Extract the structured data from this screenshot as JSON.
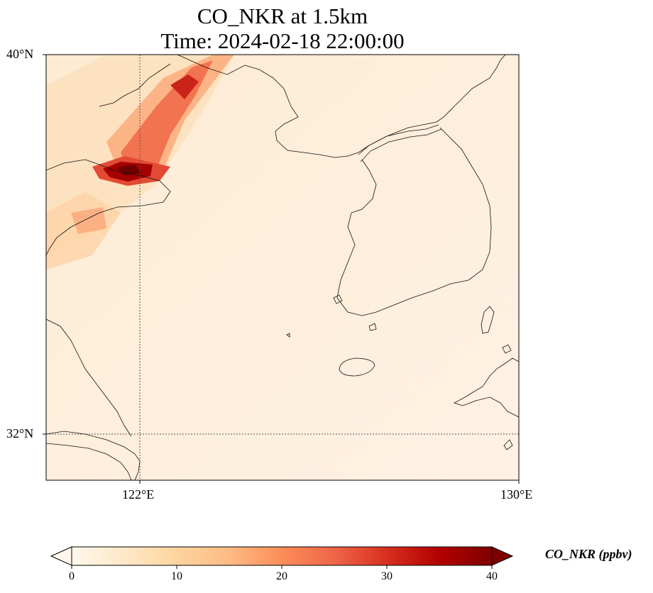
{
  "title": {
    "line1": "CO_NKR at 1.5km",
    "line2": "Time: 2024-02-18 22:00:00"
  },
  "map": {
    "variable": "CO_NKR",
    "height": "1.5km",
    "time": "2024-02-18 22:00:00",
    "extent": {
      "lon_min": 119.6,
      "lon_max": 130,
      "lat_min": 31,
      "lat_max": 40
    },
    "colormap": "OrRd",
    "gridlines": {
      "lon": [
        122
      ],
      "lat": [
        32
      ],
      "style": "dotted"
    },
    "lon_ticks": [
      {
        "value": 122,
        "label": "122°E"
      },
      {
        "value": 130,
        "label": "130°E"
      }
    ],
    "lat_ticks": [
      {
        "value": 40,
        "label": "40°N"
      },
      {
        "value": 32,
        "label": "32°N"
      }
    ],
    "features": [
      "China coastline",
      "Bohai Sea",
      "Yellow Sea",
      "Korean Peninsula",
      "Jeju Island",
      "Tsushima",
      "Kyushu"
    ]
  },
  "colorbar": {
    "label": "CO_NKR (ppbv)",
    "min": 0,
    "max": 40,
    "extend": "both",
    "ticks": [
      "0",
      "10",
      "20",
      "30",
      "40"
    ]
  }
}
